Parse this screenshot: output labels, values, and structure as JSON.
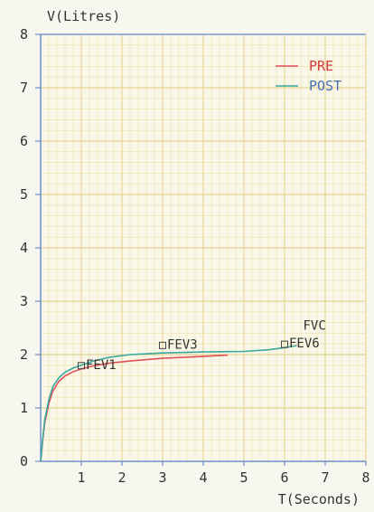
{
  "chart_data": {
    "type": "line",
    "ylabel": "V(Litres)",
    "xlabel": "T(Seconds)",
    "xlim": [
      0,
      8
    ],
    "ylim": [
      0,
      8
    ],
    "x_ticks": [
      1,
      2,
      3,
      4,
      5,
      6,
      7,
      8
    ],
    "y_ticks": [
      0,
      1,
      2,
      3,
      4,
      5,
      6,
      7,
      8
    ],
    "grid": true,
    "legend_position": "top-right",
    "series": [
      {
        "name": "PRE",
        "color": "#e0505a",
        "legend_text_color": "#d83a3a",
        "points": [
          [
            0,
            0
          ],
          [
            0.05,
            0.4
          ],
          [
            0.1,
            0.72
          ],
          [
            0.2,
            1.08
          ],
          [
            0.3,
            1.32
          ],
          [
            0.45,
            1.5
          ],
          [
            0.6,
            1.6
          ],
          [
            0.8,
            1.68
          ],
          [
            1.0,
            1.73
          ],
          [
            1.3,
            1.79
          ],
          [
            1.7,
            1.84
          ],
          [
            2.2,
            1.88
          ],
          [
            3.0,
            1.93
          ],
          [
            3.8,
            1.96
          ],
          [
            4.6,
            1.99
          ]
        ]
      },
      {
        "name": "POST",
        "color": "#3aa8a0",
        "legend_text_color": "#4a6fb8",
        "points": [
          [
            0,
            0
          ],
          [
            0.05,
            0.42
          ],
          [
            0.1,
            0.78
          ],
          [
            0.2,
            1.15
          ],
          [
            0.3,
            1.4
          ],
          [
            0.45,
            1.57
          ],
          [
            0.6,
            1.67
          ],
          [
            0.8,
            1.75
          ],
          [
            1.0,
            1.8
          ],
          [
            1.3,
            1.88
          ],
          [
            1.7,
            1.95
          ],
          [
            2.2,
            2.0
          ],
          [
            3.0,
            2.03
          ],
          [
            4.0,
            2.05
          ],
          [
            5.0,
            2.06
          ],
          [
            5.6,
            2.09
          ],
          [
            6.0,
            2.13
          ],
          [
            6.3,
            2.17
          ]
        ]
      }
    ],
    "annotations": [
      {
        "label": "FEV1",
        "x": 1.0,
        "y": 1.75,
        "marker": "square"
      },
      {
        "label": "FEV3",
        "x": 3.0,
        "y": 2.13,
        "marker": "square"
      },
      {
        "label": "FEV6",
        "x": 6.0,
        "y": 2.15,
        "marker": "square"
      },
      {
        "label": "FVC",
        "x": 6.3,
        "y": 2.4,
        "marker": "none"
      }
    ]
  }
}
